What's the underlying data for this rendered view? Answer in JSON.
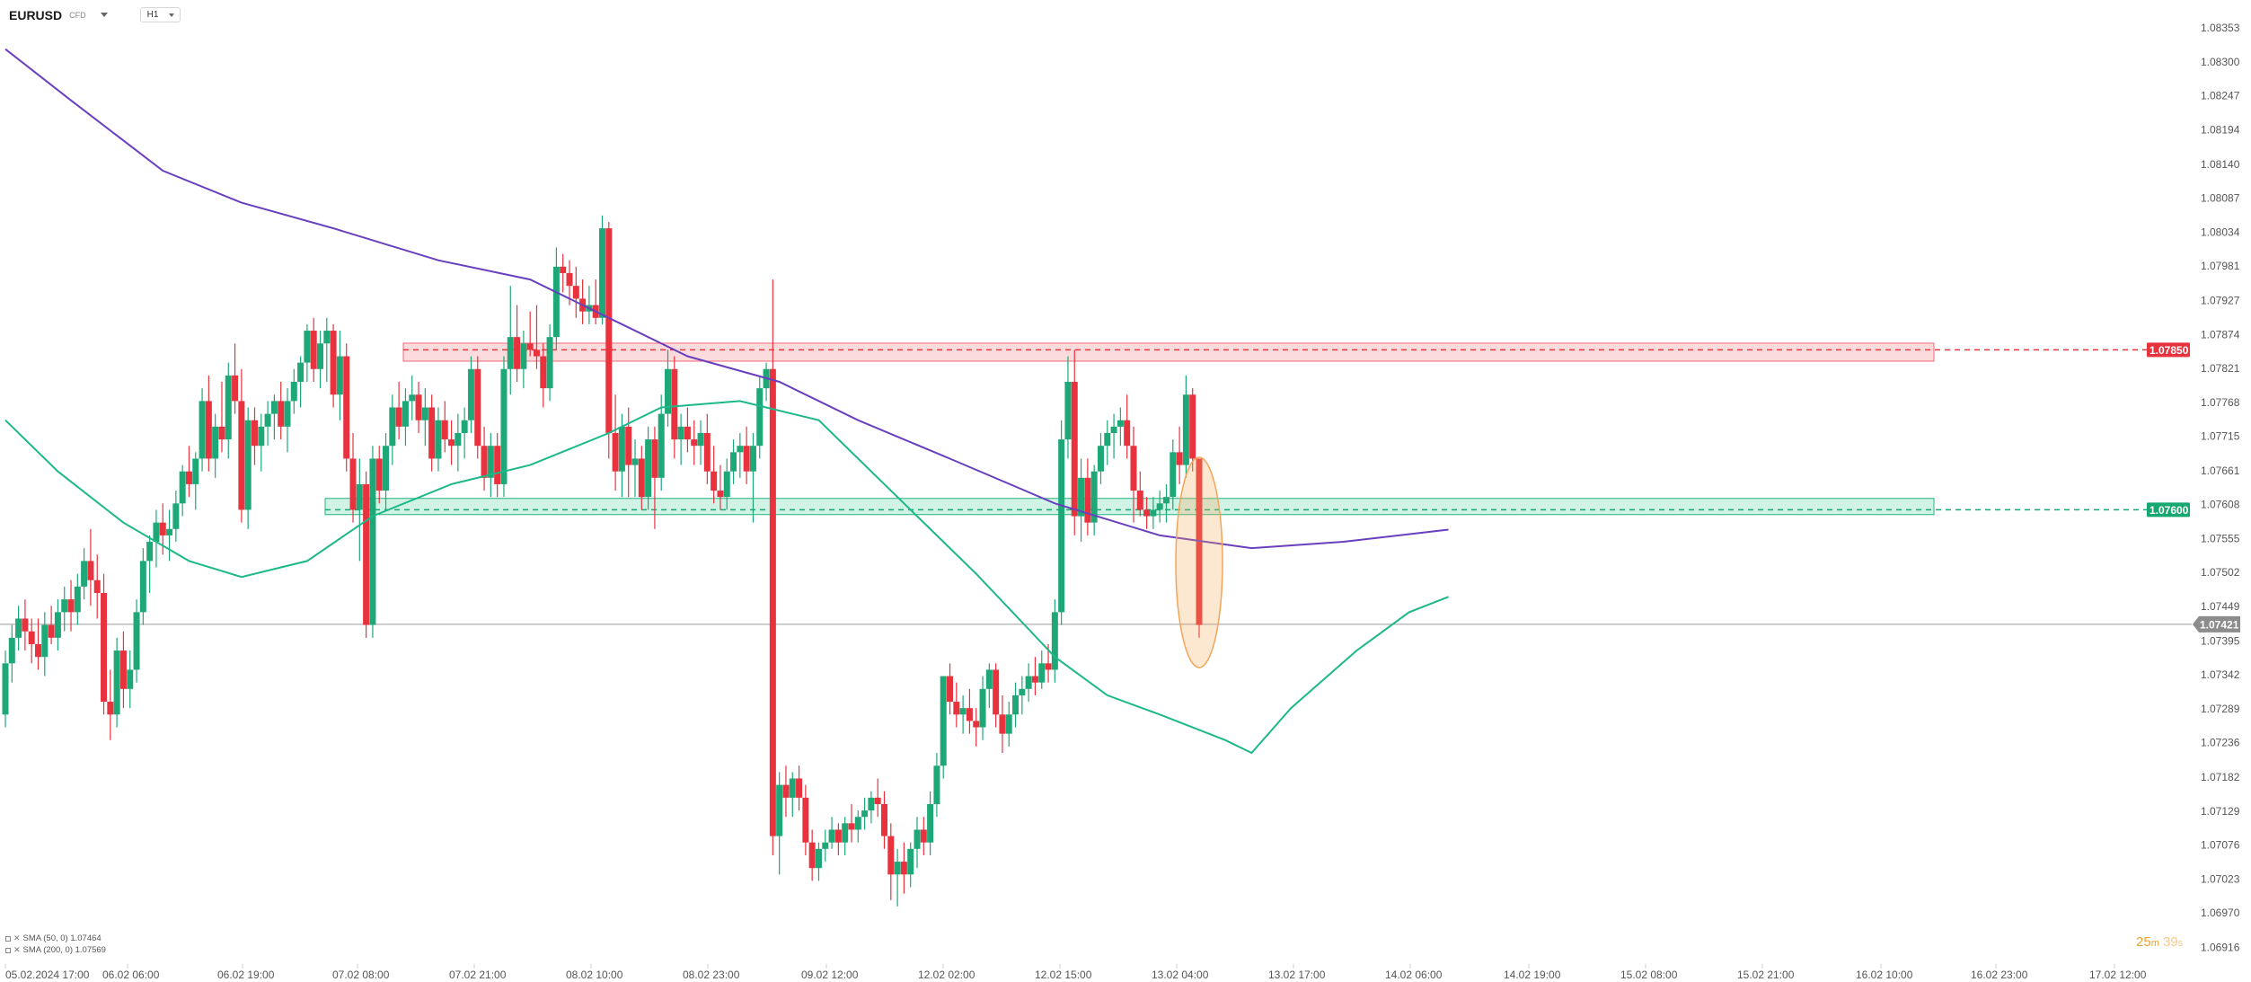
{
  "header": {
    "symbol": "EURUSD",
    "instrument_type": "CFD",
    "timeframe": "H1"
  },
  "legend": [
    {
      "label": "SMA (50, 0) 1.07464",
      "color": "#1db88a"
    },
    {
      "label": "SMA (200, 0) 1.07569",
      "color": "#6a3fbf"
    }
  ],
  "countdown": {
    "minutes": "25",
    "minutes_unit": "m",
    "seconds": "39",
    "seconds_unit": "s"
  },
  "chart_data": {
    "type": "candlestick",
    "timeframe": "H1",
    "ylim": [
      1.0689,
      1.0838
    ],
    "y_ticks": [
      "1.08353",
      "1.08300",
      "1.08247",
      "1.08194",
      "1.08140",
      "1.08087",
      "1.08034",
      "1.07981",
      "1.07927",
      "1.07874",
      "1.07821",
      "1.07768",
      "1.07715",
      "1.07661",
      "1.07608",
      "1.07555",
      "1.07502",
      "1.07449",
      "1.07395",
      "1.07342",
      "1.07289",
      "1.07236",
      "1.07182",
      "1.07129",
      "1.07076",
      "1.07023",
      "1.06970",
      "1.06916"
    ],
    "x_ticks": [
      "05.02.2024 17:00",
      "06.02 06:00",
      "06.02 19:00",
      "07.02 08:00",
      "07.02 21:00",
      "08.02 10:00",
      "08.02 23:00",
      "09.02 12:00",
      "12.02 02:00",
      "12.02 15:00",
      "13.02 04:00",
      "13.02 17:00",
      "14.02 06:00",
      "14.02 19:00",
      "15.02 08:00",
      "15.02 21:00",
      "16.02 10:00",
      "16.02 23:00",
      "17.02 12:00"
    ],
    "candles": [
      [
        1.0728,
        1.0738,
        1.0726,
        1.0736
      ],
      [
        1.0736,
        1.0742,
        1.0733,
        1.074
      ],
      [
        1.074,
        1.0745,
        1.0738,
        1.0743
      ],
      [
        1.0743,
        1.0746,
        1.0738,
        1.0741
      ],
      [
        1.0741,
        1.0743,
        1.0736,
        1.0739
      ],
      [
        1.0739,
        1.0743,
        1.0735,
        1.0737
      ],
      [
        1.0737,
        1.0744,
        1.0734,
        1.0742
      ],
      [
        1.0742,
        1.0745,
        1.0739,
        1.074
      ],
      [
        1.074,
        1.0746,
        1.0738,
        1.0744
      ],
      [
        1.0744,
        1.0748,
        1.0741,
        1.0746
      ],
      [
        1.0746,
        1.0749,
        1.0741,
        1.0744
      ],
      [
        1.0744,
        1.075,
        1.0742,
        1.0748
      ],
      [
        1.0748,
        1.0754,
        1.0746,
        1.0752
      ],
      [
        1.0752,
        1.0757,
        1.0745,
        1.0749
      ],
      [
        1.0749,
        1.0753,
        1.0743,
        1.0747
      ],
      [
        1.0747,
        1.075,
        1.0728,
        1.073
      ],
      [
        1.073,
        1.0735,
        1.0724,
        1.0728
      ],
      [
        1.0728,
        1.074,
        1.0726,
        1.0738
      ],
      [
        1.0738,
        1.0741,
        1.0729,
        1.0732
      ],
      [
        1.0732,
        1.0738,
        1.0729,
        1.0735
      ],
      [
        1.0735,
        1.0746,
        1.0733,
        1.0744
      ],
      [
        1.0744,
        1.0754,
        1.0742,
        1.0752
      ],
      [
        1.0752,
        1.0756,
        1.0747,
        1.0755
      ],
      [
        1.0755,
        1.076,
        1.0751,
        1.0758
      ],
      [
        1.0758,
        1.0761,
        1.0753,
        1.0756
      ],
      [
        1.0756,
        1.076,
        1.0752,
        1.0757
      ],
      [
        1.0757,
        1.0763,
        1.0755,
        1.0761
      ],
      [
        1.0761,
        1.0767,
        1.0759,
        1.0766
      ],
      [
        1.0766,
        1.077,
        1.0762,
        1.0764
      ],
      [
        1.0764,
        1.0769,
        1.076,
        1.0768
      ],
      [
        1.0768,
        1.0779,
        1.0766,
        1.0777
      ],
      [
        1.0777,
        1.0781,
        1.0766,
        1.0768
      ],
      [
        1.0768,
        1.0775,
        1.0765,
        1.0773
      ],
      [
        1.0773,
        1.078,
        1.0769,
        1.0771
      ],
      [
        1.0771,
        1.0783,
        1.0768,
        1.0781
      ],
      [
        1.0781,
        1.0786,
        1.0775,
        1.0777
      ],
      [
        1.0777,
        1.0782,
        1.0758,
        1.076
      ],
      [
        1.076,
        1.0776,
        1.0757,
        1.0774
      ],
      [
        1.0774,
        1.0776,
        1.0767,
        1.077
      ],
      [
        1.077,
        1.0775,
        1.0766,
        1.0773
      ],
      [
        1.0773,
        1.0777,
        1.077,
        1.0775
      ],
      [
        1.0775,
        1.0778,
        1.0771,
        1.0777
      ],
      [
        1.0777,
        1.078,
        1.0771,
        1.0773
      ],
      [
        1.0773,
        1.0779,
        1.0769,
        1.0777
      ],
      [
        1.0777,
        1.0782,
        1.0775,
        1.078
      ],
      [
        1.078,
        1.0784,
        1.0776,
        1.0783
      ],
      [
        1.0783,
        1.0789,
        1.078,
        1.0788
      ],
      [
        1.0788,
        1.079,
        1.078,
        1.0782
      ],
      [
        1.0782,
        1.0788,
        1.0779,
        1.0786
      ],
      [
        1.0786,
        1.079,
        1.078,
        1.0788
      ],
      [
        1.0788,
        1.0789,
        1.0776,
        1.0778
      ],
      [
        1.0778,
        1.0788,
        1.0774,
        1.0784
      ],
      [
        1.0784,
        1.0786,
        1.0766,
        1.0768
      ],
      [
        1.0768,
        1.0772,
        1.0758,
        1.076
      ],
      [
        1.076,
        1.0768,
        1.0752,
        1.0764
      ],
      [
        1.0764,
        1.0766,
        1.074,
        1.0742
      ],
      [
        1.0742,
        1.077,
        1.074,
        1.0768
      ],
      [
        1.0768,
        1.077,
        1.0761,
        1.0763
      ],
      [
        1.0763,
        1.0772,
        1.076,
        1.077
      ],
      [
        1.077,
        1.0778,
        1.0767,
        1.0776
      ],
      [
        1.0776,
        1.078,
        1.0771,
        1.0773
      ],
      [
        1.0773,
        1.0779,
        1.077,
        1.0777
      ],
      [
        1.0777,
        1.0781,
        1.0774,
        1.0778
      ],
      [
        1.0778,
        1.078,
        1.0772,
        1.0774
      ],
      [
        1.0774,
        1.0779,
        1.077,
        1.0776
      ],
      [
        1.0776,
        1.0778,
        1.0766,
        1.0768
      ],
      [
        1.0768,
        1.0776,
        1.0766,
        1.0774
      ],
      [
        1.0774,
        1.0777,
        1.0769,
        1.0771
      ],
      [
        1.0771,
        1.0774,
        1.0767,
        1.077
      ],
      [
        1.077,
        1.0775,
        1.0766,
        1.0772
      ],
      [
        1.0772,
        1.0776,
        1.0768,
        1.0774
      ],
      [
        1.0774,
        1.0784,
        1.0772,
        1.0782
      ],
      [
        1.0782,
        1.0784,
        1.0768,
        1.077
      ],
      [
        1.077,
        1.0773,
        1.0763,
        1.0765
      ],
      [
        1.0765,
        1.0772,
        1.0762,
        1.077
      ],
      [
        1.077,
        1.0772,
        1.0762,
        1.0764
      ],
      [
        1.0764,
        1.0784,
        1.0762,
        1.0782
      ],
      [
        1.0782,
        1.0795,
        1.0778,
        1.0787
      ],
      [
        1.0787,
        1.0792,
        1.078,
        1.0782
      ],
      [
        1.0782,
        1.0788,
        1.0779,
        1.0786
      ],
      [
        1.0786,
        1.0791,
        1.0784,
        1.0785
      ],
      [
        1.0785,
        1.0792,
        1.0782,
        1.0784
      ],
      [
        1.0784,
        1.0786,
        1.0776,
        1.0779
      ],
      [
        1.0779,
        1.0789,
        1.0777,
        1.0787
      ],
      [
        1.0787,
        1.0801,
        1.0785,
        1.0798
      ],
      [
        1.0798,
        1.08,
        1.0794,
        1.0797
      ],
      [
        1.0797,
        1.0799,
        1.0792,
        1.0795
      ],
      [
        1.0795,
        1.0798,
        1.079,
        1.0793
      ],
      [
        1.0793,
        1.0796,
        1.0789,
        1.0791
      ],
      [
        1.0791,
        1.0795,
        1.0789,
        1.0792
      ],
      [
        1.0792,
        1.0796,
        1.0789,
        1.079
      ],
      [
        1.079,
        1.0806,
        1.0789,
        1.0804
      ],
      [
        1.0804,
        1.0805,
        1.0768,
        1.0772
      ],
      [
        1.0772,
        1.0778,
        1.0763,
        1.0766
      ],
      [
        1.0766,
        1.0775,
        1.0762,
        1.0773
      ],
      [
        1.0773,
        1.0776,
        1.0762,
        1.0767
      ],
      [
        1.0767,
        1.0771,
        1.0762,
        1.0768
      ],
      [
        1.0768,
        1.077,
        1.076,
        1.0762
      ],
      [
        1.0762,
        1.0773,
        1.076,
        1.0771
      ],
      [
        1.0771,
        1.0773,
        1.0757,
        1.0765
      ],
      [
        1.0765,
        1.0778,
        1.0763,
        1.0775
      ],
      [
        1.0775,
        1.0785,
        1.0773,
        1.0782
      ],
      [
        1.0782,
        1.0784,
        1.0768,
        1.0771
      ],
      [
        1.0771,
        1.0775,
        1.0767,
        1.0773
      ],
      [
        1.0773,
        1.0776,
        1.0769,
        1.0771
      ],
      [
        1.0771,
        1.0774,
        1.0767,
        1.077
      ],
      [
        1.077,
        1.0774,
        1.0767,
        1.0772
      ],
      [
        1.0772,
        1.0775,
        1.0764,
        1.0766
      ],
      [
        1.0766,
        1.077,
        1.0761,
        1.0763
      ],
      [
        1.0763,
        1.0767,
        1.076,
        1.0762
      ],
      [
        1.0762,
        1.0768,
        1.076,
        1.0766
      ],
      [
        1.0766,
        1.0771,
        1.0764,
        1.0769
      ],
      [
        1.0769,
        1.0772,
        1.0765,
        1.077
      ],
      [
        1.077,
        1.0773,
        1.0764,
        1.0766
      ],
      [
        1.0766,
        1.0772,
        1.0758,
        1.077
      ],
      [
        1.077,
        1.0781,
        1.0768,
        1.0779
      ],
      [
        1.0779,
        1.0783,
        1.0777,
        1.0782
      ],
      [
        1.0782,
        1.0796,
        1.0706,
        1.0709
      ],
      [
        1.0709,
        1.0719,
        1.0703,
        1.0717
      ],
      [
        1.0717,
        1.072,
        1.0712,
        1.0715
      ],
      [
        1.0715,
        1.0719,
        1.0712,
        1.0718
      ],
      [
        1.0718,
        1.072,
        1.0713,
        1.0715
      ],
      [
        1.0715,
        1.0717,
        1.0706,
        1.0708
      ],
      [
        1.0708,
        1.071,
        1.0702,
        1.0704
      ],
      [
        1.0704,
        1.0708,
        1.0702,
        1.0707
      ],
      [
        1.0707,
        1.071,
        1.0705,
        1.0708
      ],
      [
        1.0708,
        1.0712,
        1.0707,
        1.071
      ],
      [
        1.071,
        1.0711,
        1.0706,
        1.0708
      ],
      [
        1.0708,
        1.0712,
        1.0706,
        1.0711
      ],
      [
        1.0711,
        1.0714,
        1.0708,
        1.071
      ],
      [
        1.071,
        1.0713,
        1.0708,
        1.0712
      ],
      [
        1.0712,
        1.0715,
        1.071,
        1.0713
      ],
      [
        1.0713,
        1.0716,
        1.0711,
        1.0715
      ],
      [
        1.0715,
        1.0718,
        1.0712,
        1.0714
      ],
      [
        1.0714,
        1.0716,
        1.0707,
        1.0709
      ],
      [
        1.0709,
        1.0711,
        1.0699,
        1.0703
      ],
      [
        1.0703,
        1.0707,
        1.0698,
        1.0705
      ],
      [
        1.0705,
        1.0708,
        1.07,
        1.0703
      ],
      [
        1.0703,
        1.0708,
        1.0701,
        1.0707
      ],
      [
        1.0707,
        1.0712,
        1.0704,
        1.071
      ],
      [
        1.071,
        1.0712,
        1.0706,
        1.0708
      ],
      [
        1.0708,
        1.0716,
        1.0706,
        1.0714
      ],
      [
        1.0714,
        1.0722,
        1.0712,
        1.072
      ],
      [
        1.072,
        1.0734,
        1.0718,
        1.0734
      ],
      [
        1.0734,
        1.0736,
        1.0728,
        1.073
      ],
      [
        1.073,
        1.0733,
        1.0726,
        1.0728
      ],
      [
        1.0728,
        1.0731,
        1.0725,
        1.0729
      ],
      [
        1.0729,
        1.0732,
        1.0725,
        1.0727
      ],
      [
        1.0727,
        1.0729,
        1.0723,
        1.0726
      ],
      [
        1.0726,
        1.0734,
        1.0724,
        1.0732
      ],
      [
        1.0732,
        1.0736,
        1.0729,
        1.0735
      ],
      [
        1.0735,
        1.0736,
        1.0726,
        1.0728
      ],
      [
        1.0728,
        1.0731,
        1.0722,
        1.0725
      ],
      [
        1.0725,
        1.073,
        1.0723,
        1.0728
      ],
      [
        1.0728,
        1.0733,
        1.0726,
        1.0731
      ],
      [
        1.0731,
        1.0734,
        1.0728,
        1.0732
      ],
      [
        1.0732,
        1.0736,
        1.073,
        1.0734
      ],
      [
        1.0734,
        1.0737,
        1.0731,
        1.0733
      ],
      [
        1.0733,
        1.0738,
        1.0732,
        1.0736
      ],
      [
        1.0736,
        1.0739,
        1.0733,
        1.0735
      ],
      [
        1.0735,
        1.0746,
        1.0733,
        1.0744
      ],
      [
        1.0744,
        1.0774,
        1.0742,
        1.0771
      ],
      [
        1.0771,
        1.0784,
        1.0768,
        1.078
      ],
      [
        1.078,
        1.0785,
        1.0756,
        1.0759
      ],
      [
        1.0759,
        1.0768,
        1.0755,
        1.0765
      ],
      [
        1.0765,
        1.0768,
        1.0756,
        1.0758
      ],
      [
        1.0758,
        1.0767,
        1.0756,
        1.0766
      ],
      [
        1.0766,
        1.0772,
        1.0764,
        1.077
      ],
      [
        1.077,
        1.0774,
        1.0767,
        1.0772
      ],
      [
        1.0772,
        1.0775,
        1.0768,
        1.0773
      ],
      [
        1.0773,
        1.0776,
        1.077,
        1.0774
      ],
      [
        1.0774,
        1.0778,
        1.0768,
        1.077
      ],
      [
        1.077,
        1.0773,
        1.0758,
        1.0763
      ],
      [
        1.0763,
        1.0766,
        1.0759,
        1.076
      ],
      [
        1.076,
        1.0762,
        1.0757,
        1.0759
      ],
      [
        1.0759,
        1.0762,
        1.0757,
        1.076
      ],
      [
        1.076,
        1.0763,
        1.0758,
        1.0761
      ],
      [
        1.0761,
        1.0764,
        1.0758,
        1.0762
      ],
      [
        1.0762,
        1.0771,
        1.076,
        1.0769
      ],
      [
        1.0769,
        1.0773,
        1.0764,
        1.0767
      ],
      [
        1.0767,
        1.0781,
        1.0765,
        1.0778
      ],
      [
        1.0778,
        1.0779,
        1.0766,
        1.0768
      ],
      [
        1.0768,
        1.0768,
        1.074,
        1.0742
      ]
    ],
    "sma50": [
      [
        0,
        1.0774
      ],
      [
        8,
        1.0766
      ],
      [
        18,
        1.0758
      ],
      [
        28,
        1.0752
      ],
      [
        36,
        1.07495
      ],
      [
        46,
        1.0752
      ],
      [
        56,
        1.0759
      ],
      [
        68,
        1.0764
      ],
      [
        80,
        1.0767
      ],
      [
        92,
        1.0772
      ],
      [
        100,
        1.0776
      ],
      [
        112,
        1.0777
      ],
      [
        124,
        1.0774
      ],
      [
        136,
        1.0762
      ],
      [
        148,
        1.075
      ],
      [
        160,
        1.0737
      ],
      [
        168,
        1.0731
      ],
      [
        176,
        1.0728
      ],
      [
        186,
        1.0724
      ],
      [
        190,
        1.0722
      ],
      [
        196,
        1.0729
      ],
      [
        206,
        1.0738
      ],
      [
        214,
        1.0744
      ],
      [
        220,
        1.07464
      ]
    ],
    "sma200": [
      [
        0,
        1.0832
      ],
      [
        10,
        1.0824
      ],
      [
        24,
        1.0813
      ],
      [
        36,
        1.0808
      ],
      [
        50,
        1.0804
      ],
      [
        66,
        1.0799
      ],
      [
        80,
        1.0796
      ],
      [
        92,
        1.079
      ],
      [
        104,
        1.0784
      ],
      [
        118,
        1.078
      ],
      [
        130,
        1.0774
      ],
      [
        144,
        1.0768
      ],
      [
        160,
        1.0761
      ],
      [
        176,
        1.0756
      ],
      [
        190,
        1.0754
      ],
      [
        204,
        1.0755
      ],
      [
        220,
        1.07569
      ]
    ],
    "resistance_zone": {
      "low": 1.07825,
      "high": 1.07852,
      "level": 1.0785
    },
    "support_zone": {
      "low": 1.07588,
      "high": 1.07615,
      "level": 1.076
    },
    "last_price": 1.07421,
    "price_labels": {
      "resistance": "1.07850",
      "support": "1.07600",
      "last": "1.07421"
    }
  }
}
